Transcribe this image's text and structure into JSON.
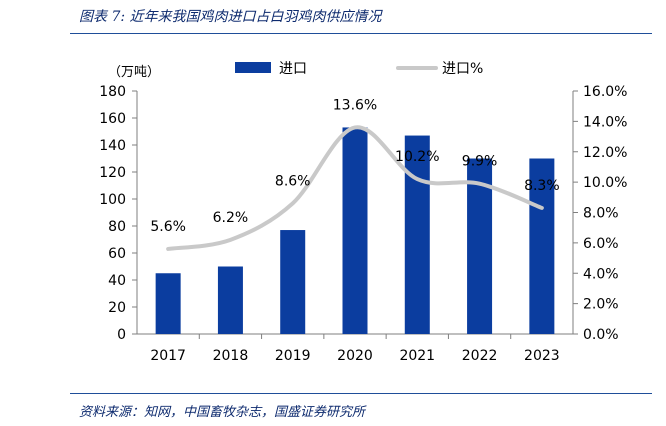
{
  "figure": {
    "title": "图表 7:  近年来我国鸡肉进口占白羽鸡肉供应情况",
    "source": "资料来源：知网，中国畜牧杂志，国盛证券研究所"
  },
  "colors": {
    "bar": "#0b3d9f",
    "line": "#c9c9c9",
    "axis": "#7f7f7f",
    "rule": "#1f4e99",
    "title": "#0d2a6e"
  },
  "chart_data": {
    "type": "bar",
    "unit_label": "（万吨）",
    "categories": [
      "2017",
      "2018",
      "2019",
      "2020",
      "2021",
      "2022",
      "2023"
    ],
    "series": [
      {
        "name": "进口",
        "type": "bar",
        "axis": "left",
        "values": [
          45,
          50,
          77,
          153,
          147,
          130,
          130
        ]
      },
      {
        "name": "进口%",
        "type": "line",
        "axis": "right",
        "values": [
          5.6,
          6.2,
          8.6,
          13.6,
          10.2,
          9.9,
          8.3
        ],
        "data_labels": [
          "5.6%",
          "6.2%",
          "8.6%",
          "13.6%",
          "10.2%",
          "9.9%",
          "8.3%"
        ]
      }
    ],
    "y_left": {
      "min": 0,
      "max": 180,
      "step": 20,
      "ticks": [
        "0",
        "20",
        "40",
        "60",
        "80",
        "100",
        "120",
        "140",
        "160",
        "180"
      ]
    },
    "y_right": {
      "min": 0,
      "max": 16,
      "step": 2,
      "ticks": [
        "0.0%",
        "2.0%",
        "4.0%",
        "6.0%",
        "8.0%",
        "10.0%",
        "12.0%",
        "14.0%",
        "16.0%"
      ]
    },
    "grid": false,
    "legend_position": "top"
  }
}
